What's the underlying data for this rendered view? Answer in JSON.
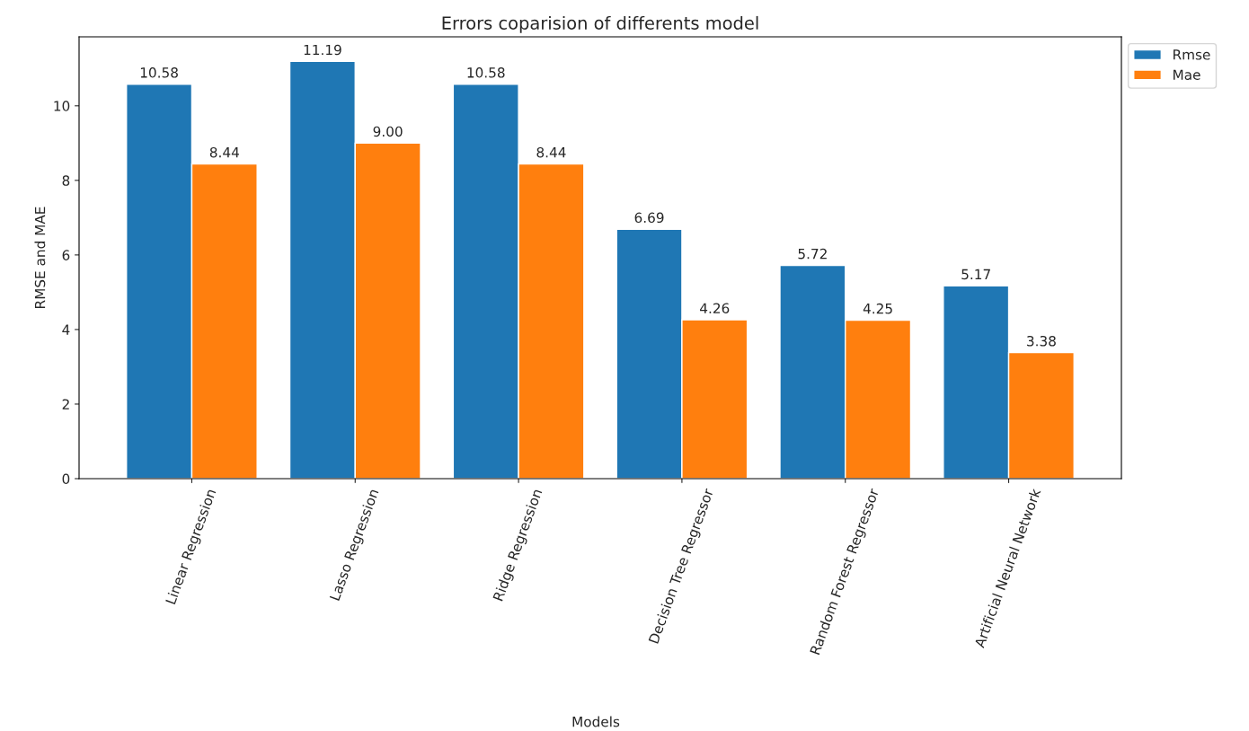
{
  "chart_data": {
    "type": "bar",
    "title": "Errors coparision of differents model",
    "xlabel": "Models",
    "ylabel": "RMSE and MAE",
    "categories": [
      "Linear Regression",
      "Lasso Regression",
      "Ridge Regression",
      "Decision Tree Regressor",
      "Random Forest Regressor",
      "Artificial Neural Network"
    ],
    "series": [
      {
        "name": "Rmse",
        "color": "#1f77b4",
        "values": [
          10.58,
          11.19,
          10.58,
          6.69,
          5.72,
          5.17
        ],
        "value_labels": [
          "10.58",
          "11.19",
          "10.58",
          "6.69",
          "5.72",
          "5.17"
        ]
      },
      {
        "name": "Mae",
        "color": "#ff7f0e",
        "values": [
          8.44,
          9.0,
          8.44,
          4.26,
          4.25,
          3.38
        ],
        "value_labels": [
          "8.44",
          "9.00",
          "8.44",
          "4.26",
          "4.25",
          "3.38"
        ]
      }
    ],
    "ylim": [
      0,
      11.85
    ],
    "yticks": [
      0,
      2,
      4,
      6,
      8,
      10
    ],
    "grid": false,
    "legend": "top right"
  }
}
